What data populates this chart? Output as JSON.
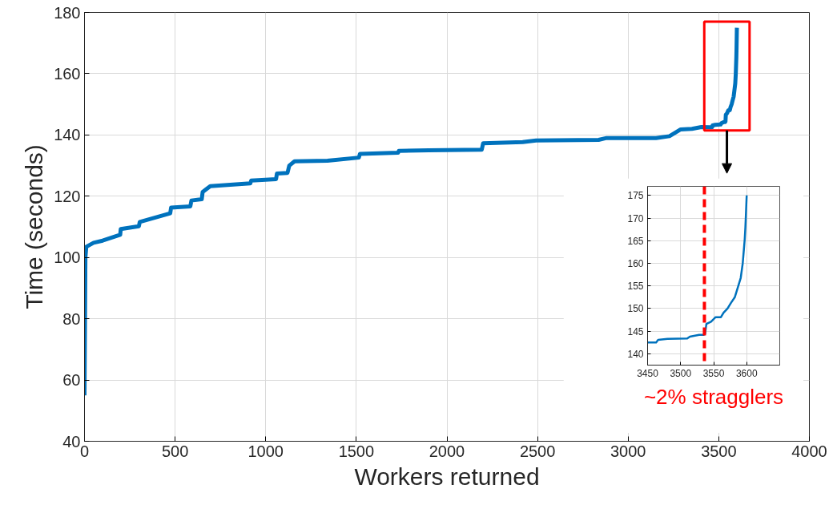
{
  "chart_data": [
    {
      "type": "line",
      "xlabel": "Workers returned",
      "ylabel": "Time (seconds)",
      "xlim": [
        0,
        4000
      ],
      "ylim": [
        40,
        180
      ],
      "xticks": [
        0,
        500,
        1000,
        1500,
        2000,
        2500,
        3000,
        3500,
        4000
      ],
      "yticks": [
        40,
        60,
        80,
        100,
        120,
        140,
        160,
        180
      ],
      "grid": true,
      "line_style": "solid",
      "series": [
        {
          "color": "#0072bd",
          "x": [
            0,
            5,
            10,
            50,
            100,
            197,
            200,
            300,
            305,
            473,
            478,
            584,
            590,
            647,
            652,
            694,
            915,
            920,
            1057,
            1062,
            1120,
            1130,
            1159,
            1341,
            1514,
            1520,
            1730,
            1735,
            1899,
            2192,
            2200,
            2418,
            2492,
            2837,
            2881,
            3154,
            3228,
            3290,
            3352,
            3404,
            3450,
            3463,
            3466,
            3480,
            3510,
            3514,
            3528,
            3535,
            3537,
            3539,
            3546,
            3553,
            3561,
            3565,
            3571,
            3576,
            3582,
            3586,
            3591,
            3594,
            3597,
            3598,
            3600
          ],
          "values": [
            55,
            100,
            103.5,
            104.8,
            105.5,
            107.4,
            109.3,
            110.2,
            111.6,
            114.4,
            116.3,
            116.7,
            118.6,
            119,
            121.4,
            123.3,
            124.2,
            125.1,
            125.6,
            127.4,
            127.6,
            130,
            131.4,
            131.6,
            132.6,
            133.8,
            134.2,
            134.8,
            135.0,
            135.2,
            137.3,
            137.7,
            138.2,
            138.4,
            139.0,
            139.0,
            139.6,
            141.8,
            142.0,
            142.6,
            142.5,
            142.5,
            143.1,
            143.3,
            143.4,
            143.8,
            144.2,
            144.2,
            144.4,
            146.6,
            147.1,
            148.1,
            148.1,
            149.1,
            150,
            151.2,
            152.5,
            154.4,
            156.8,
            160,
            165.3,
            167.9,
            175
          ]
        }
      ]
    },
    {
      "type": "line",
      "xlim": [
        3450,
        3650
      ],
      "ylim": [
        137.5,
        177
      ],
      "xticks": [
        3450,
        3500,
        3550,
        3600
      ],
      "yticks": [
        140,
        145,
        150,
        155,
        160,
        165,
        170,
        175
      ],
      "grid": true,
      "line_style": "solid",
      "annotations": [
        "~2% stragglers"
      ],
      "ref_lines": [
        {
          "axis": "x",
          "value": 3536,
          "color": "#ff0000",
          "line_style": "dashed"
        }
      ],
      "series": [
        {
          "color": "#0072bd",
          "x": [
            3450,
            3463,
            3466,
            3480,
            3510,
            3514,
            3528,
            3535,
            3537,
            3539,
            3546,
            3553,
            3561,
            3565,
            3571,
            3576,
            3582,
            3586,
            3591,
            3594,
            3597,
            3598,
            3600
          ],
          "values": [
            142.5,
            142.5,
            143.1,
            143.3,
            143.4,
            143.8,
            144.2,
            144.2,
            144.4,
            146.6,
            147.1,
            148.1,
            148.1,
            149.1,
            150,
            151.2,
            152.5,
            154.4,
            156.8,
            160,
            165.3,
            167.9,
            175
          ]
        }
      ]
    }
  ]
}
